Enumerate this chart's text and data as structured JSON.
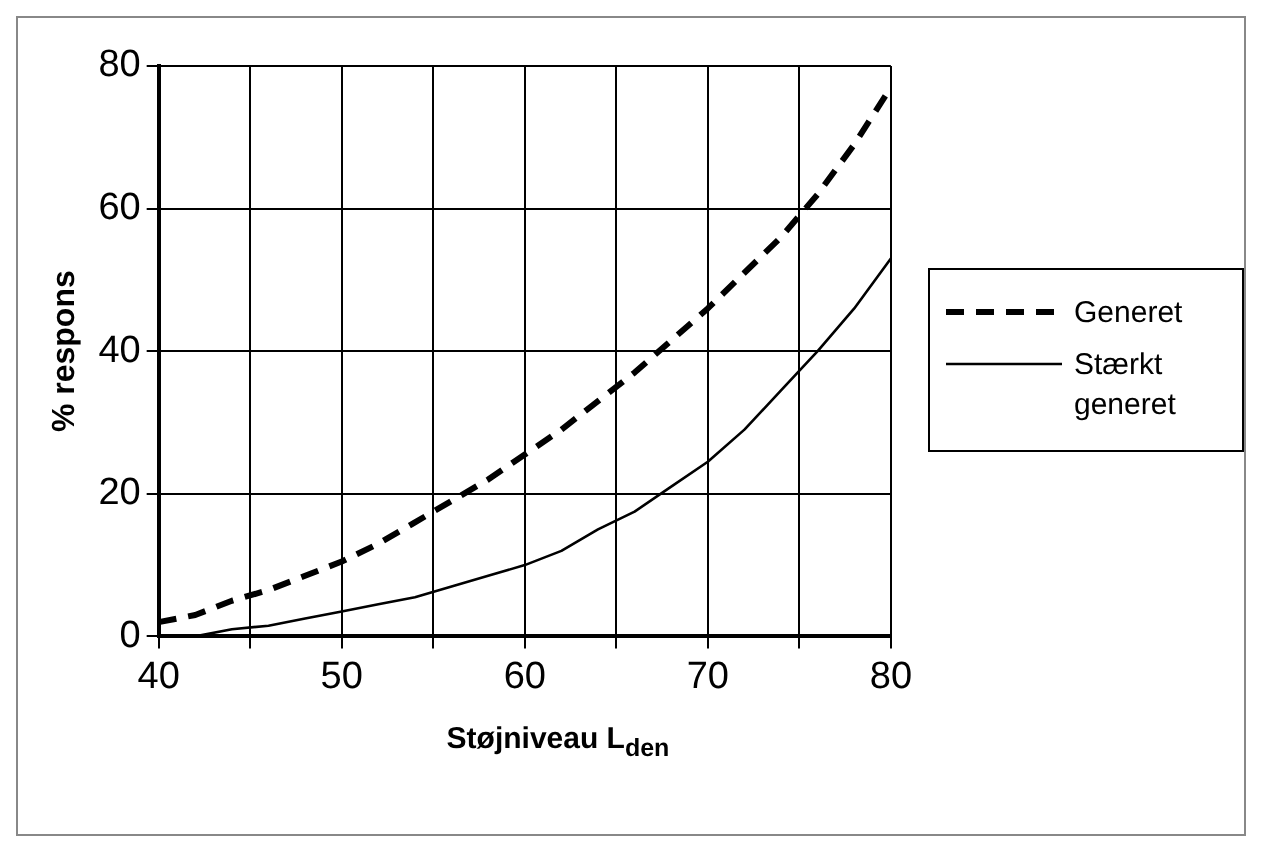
{
  "chart_data": {
    "type": "line",
    "xlabel": "Støjniveau L$_{den}$",
    "ylabel": "% respons",
    "x": [
      40,
      42,
      44,
      46,
      48,
      50,
      52,
      54,
      56,
      58,
      60,
      62,
      64,
      66,
      68,
      70,
      72,
      74,
      76,
      78,
      80
    ],
    "series": [
      {
        "name": "Generet",
        "color": "#000000",
        "line_style": "dashed",
        "values": [
          2,
          3,
          5,
          6.5,
          8.5,
          10.5,
          13,
          16,
          19,
          22,
          25.5,
          29,
          33,
          37,
          41.5,
          46,
          51,
          56,
          62,
          69,
          77
        ]
      },
      {
        "name": "Stærkt generet",
        "color": "#000000",
        "line_style": "solid",
        "values": [
          null,
          0,
          1,
          1.5,
          2.5,
          3.5,
          4.5,
          5.5,
          7,
          8.5,
          10,
          12,
          15,
          17.5,
          21,
          24.5,
          29,
          34.5,
          40,
          46,
          53
        ]
      }
    ],
    "xlim": [
      40,
      80
    ],
    "xticks": [
      40,
      {
        "value": 45,
        "label": null
      },
      50,
      {
        "value": 55,
        "label": null
      },
      60,
      {
        "value": 65,
        "label": null
      },
      70,
      {
        "value": 75,
        "label": null
      },
      80
    ],
    "ylim": [
      0,
      80
    ],
    "yticks": [
      0,
      20,
      40,
      60,
      80
    ],
    "grid": true,
    "legend": "right",
    "marker": "none"
  }
}
